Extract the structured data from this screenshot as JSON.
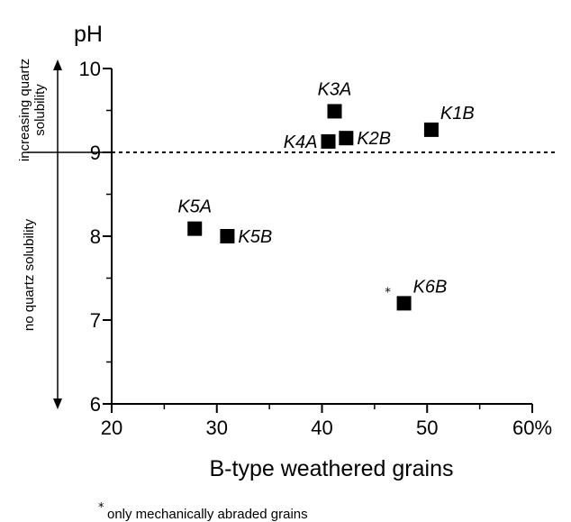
{
  "chart_data": {
    "type": "scatter",
    "title": "",
    "xlabel": "B-type weathered grains",
    "ylabel": "pH",
    "xlim": [
      20,
      60
    ],
    "ylim": [
      6,
      10
    ],
    "x_ticks": [
      "20",
      "30",
      "40",
      "50",
      "60%"
    ],
    "y_ticks": [
      "6",
      "7",
      "8",
      "9",
      "10"
    ],
    "grid": false,
    "reference_line": {
      "y": 9,
      "style": "dashed"
    },
    "points": [
      {
        "label": "K3A",
        "x": 41.2,
        "y": 9.49,
        "label_pos": "above"
      },
      {
        "label": "K1B",
        "x": 50.4,
        "y": 9.27,
        "label_pos": "above-right"
      },
      {
        "label": "K4A",
        "x": 40.6,
        "y": 9.13,
        "label_pos": "left"
      },
      {
        "label": "K2B",
        "x": 42.3,
        "y": 9.17,
        "label_pos": "right"
      },
      {
        "label": "K5A",
        "x": 27.9,
        "y": 8.09,
        "label_pos": "above"
      },
      {
        "label": "K5B",
        "x": 31.0,
        "y": 8.0,
        "label_pos": "right"
      },
      {
        "label": "K6B",
        "x": 47.8,
        "y": 7.2,
        "label_pos": "above-right",
        "marker_note": "*"
      }
    ],
    "side_annotations": {
      "upper": "increasing quartz solubility",
      "lower": "no quartz solubility"
    },
    "footnote": {
      "symbol": "*",
      "text": "only mechanically abraded grains"
    },
    "colors": {
      "marker": "#000000",
      "line": "#000000"
    }
  }
}
